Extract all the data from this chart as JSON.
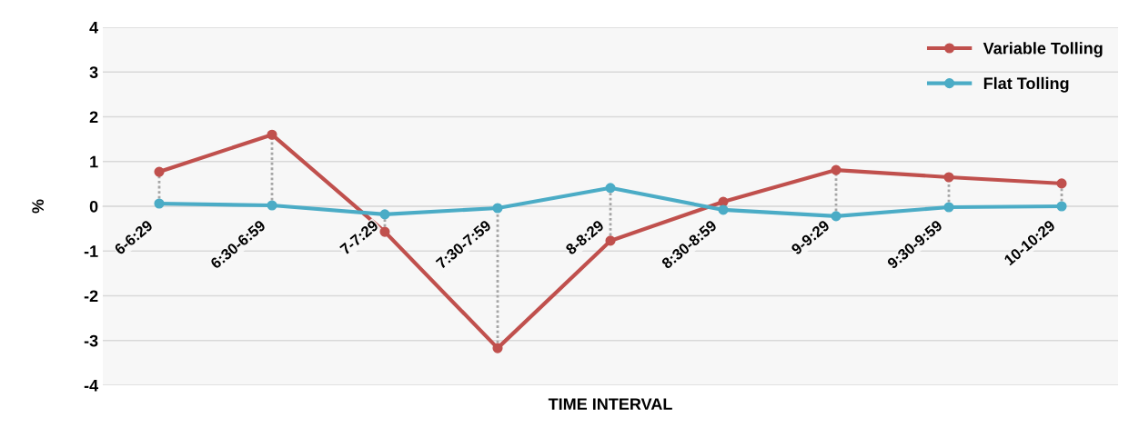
{
  "chart_data": {
    "type": "line",
    "xlabel": "TIME INTERVAL",
    "ylabel": "%",
    "categories": [
      "6-6:29",
      "6:30-6:59",
      "7-7:29",
      "7:30-7:59",
      "8-8:29",
      "8:30-8:59",
      "9-9:29",
      "9:30-9:59",
      "10-10:29"
    ],
    "series": [
      {
        "name": "Variable Tolling",
        "color": "#c0504d",
        "values": [
          0.77,
          1.6,
          -0.57,
          -3.17,
          -0.77,
          0.1,
          0.81,
          0.65,
          0.51
        ]
      },
      {
        "name": "Flat Tolling",
        "color": "#4bacc6",
        "values": [
          0.06,
          0.02,
          -0.18,
          -0.04,
          0.41,
          -0.08,
          -0.22,
          -0.02,
          0.0
        ]
      }
    ],
    "ylim": [
      -4,
      4
    ],
    "yticks": [
      -4,
      -3,
      -2,
      -1,
      0,
      1,
      2,
      3,
      4
    ],
    "grid": "y",
    "legend": "top right",
    "marker": "circle",
    "line_style": "solid"
  }
}
